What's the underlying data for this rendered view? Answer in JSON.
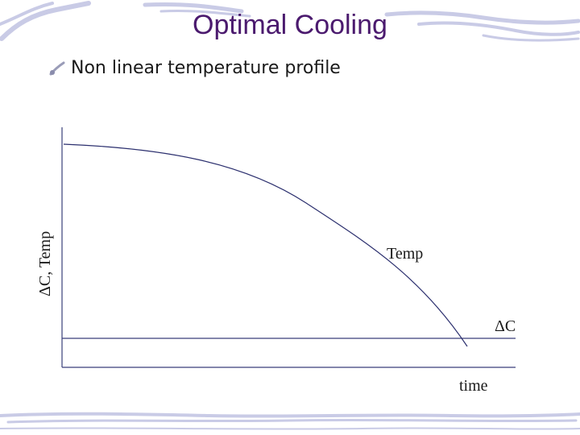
{
  "slide": {
    "title": "Optimal Cooling",
    "bullet": "Non linear temperature profile"
  },
  "diagram": {
    "y_axis_label": "ΔC, Temp",
    "x_axis_label": "time",
    "curve_label": "Temp",
    "line_label": "ΔC"
  },
  "colors": {
    "title": "#4b1a6e",
    "axis": "#3a3f7a",
    "curve": "#2b2f6e",
    "decor": "#c9cbe6"
  }
}
